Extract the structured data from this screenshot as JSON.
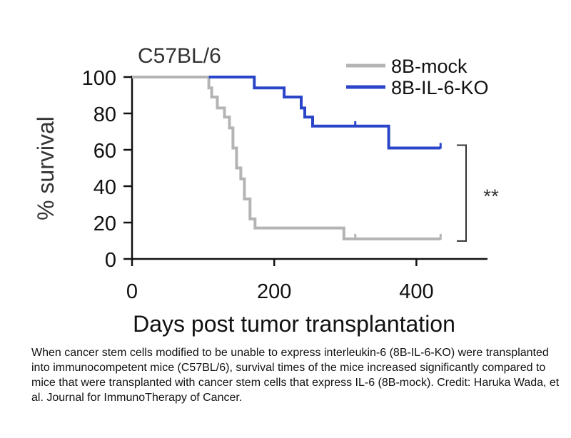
{
  "chart_data": {
    "type": "line",
    "step": true,
    "title": "C57BL/6",
    "xlabel": "Days post tumor transplantation",
    "ylabel": "% survival",
    "xlim": [
      0,
      500
    ],
    "ylim": [
      0,
      100
    ],
    "x_ticks": [
      0,
      200,
      400
    ],
    "y_ticks": [
      0,
      20,
      40,
      60,
      80,
      100
    ],
    "grid": false,
    "legend_position": "top-right",
    "significance_label": "**",
    "series": [
      {
        "name": "8B-mock",
        "color": "#b4b4b4",
        "points": [
          [
            0,
            100
          ],
          [
            108,
            100
          ],
          [
            108,
            94
          ],
          [
            112,
            94
          ],
          [
            112,
            89
          ],
          [
            120,
            89
          ],
          [
            120,
            83
          ],
          [
            130,
            83
          ],
          [
            130,
            78
          ],
          [
            137,
            78
          ],
          [
            137,
            72
          ],
          [
            142,
            72
          ],
          [
            142,
            61
          ],
          [
            147,
            61
          ],
          [
            147,
            50
          ],
          [
            153,
            50
          ],
          [
            153,
            44
          ],
          [
            158,
            44
          ],
          [
            158,
            33
          ],
          [
            166,
            33
          ],
          [
            166,
            22
          ],
          [
            173,
            22
          ],
          [
            173,
            17
          ],
          [
            298,
            17
          ],
          [
            298,
            11
          ],
          [
            434,
            11
          ]
        ],
        "censored": [
          [
            314,
            11
          ],
          [
            434,
            11
          ]
        ]
      },
      {
        "name": "8B-IL-6-KO",
        "color": "#2a45c8",
        "points": [
          [
            108,
            100
          ],
          [
            172,
            100
          ],
          [
            172,
            94
          ],
          [
            214,
            94
          ],
          [
            214,
            89
          ],
          [
            238,
            89
          ],
          [
            238,
            83
          ],
          [
            243,
            83
          ],
          [
            243,
            78
          ],
          [
            254,
            78
          ],
          [
            254,
            73
          ],
          [
            361,
            73
          ],
          [
            361,
            61
          ],
          [
            434,
            61
          ]
        ],
        "censored": [
          [
            314,
            73
          ],
          [
            434,
            61
          ]
        ]
      }
    ]
  },
  "caption": "When cancer stem cells modified to be unable to express interleukin-6 (8B-IL-6-KO) were transplanted into immunocompetent mice (C57BL/6), survival times of the mice increased significantly compared to mice that were transplanted with cancer stem cells that express IL-6 (8B-mock). Credit: Haruka Wada, et al. Journal for ImmunoTherapy of Cancer."
}
